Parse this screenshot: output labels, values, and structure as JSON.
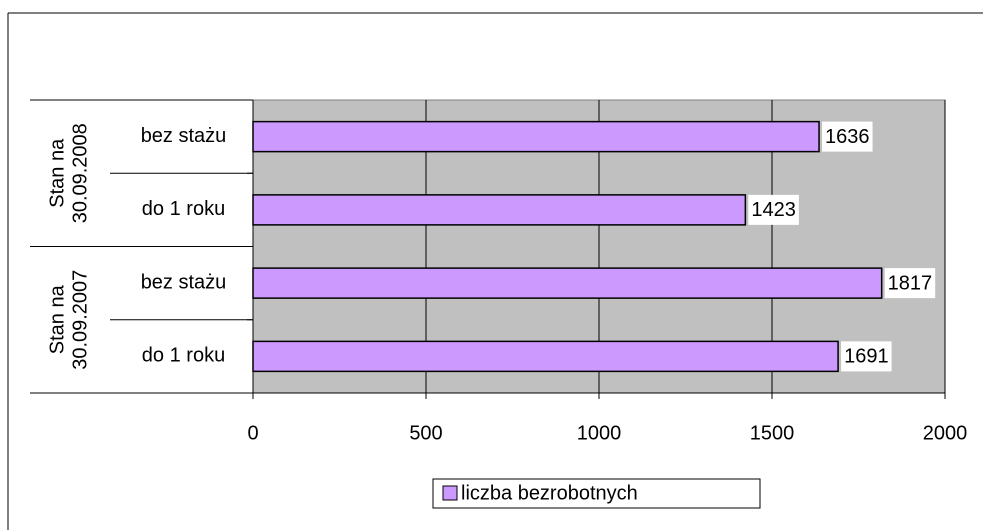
{
  "chart_data": {
    "type": "bar",
    "orientation": "horizontal",
    "groups": [
      {
        "label": [
          "Stan na",
          "30.09.2008"
        ],
        "categories": [
          "bez stażu",
          "do 1 roku"
        ]
      },
      {
        "label": [
          "Stan na",
          "30.09.2007"
        ],
        "categories": [
          "bez stażu",
          "do 1 roku"
        ]
      }
    ],
    "series": [
      {
        "name": "liczba bezrobotnych",
        "color": "#cc99ff",
        "values": [
          1636,
          1423,
          1817,
          1691
        ]
      }
    ],
    "xlim": [
      0,
      2000
    ],
    "xticks": [
      0,
      500,
      1000,
      1500,
      2000
    ],
    "grid": true,
    "plot_background": "#c0c0c0",
    "legend": "bottom"
  }
}
